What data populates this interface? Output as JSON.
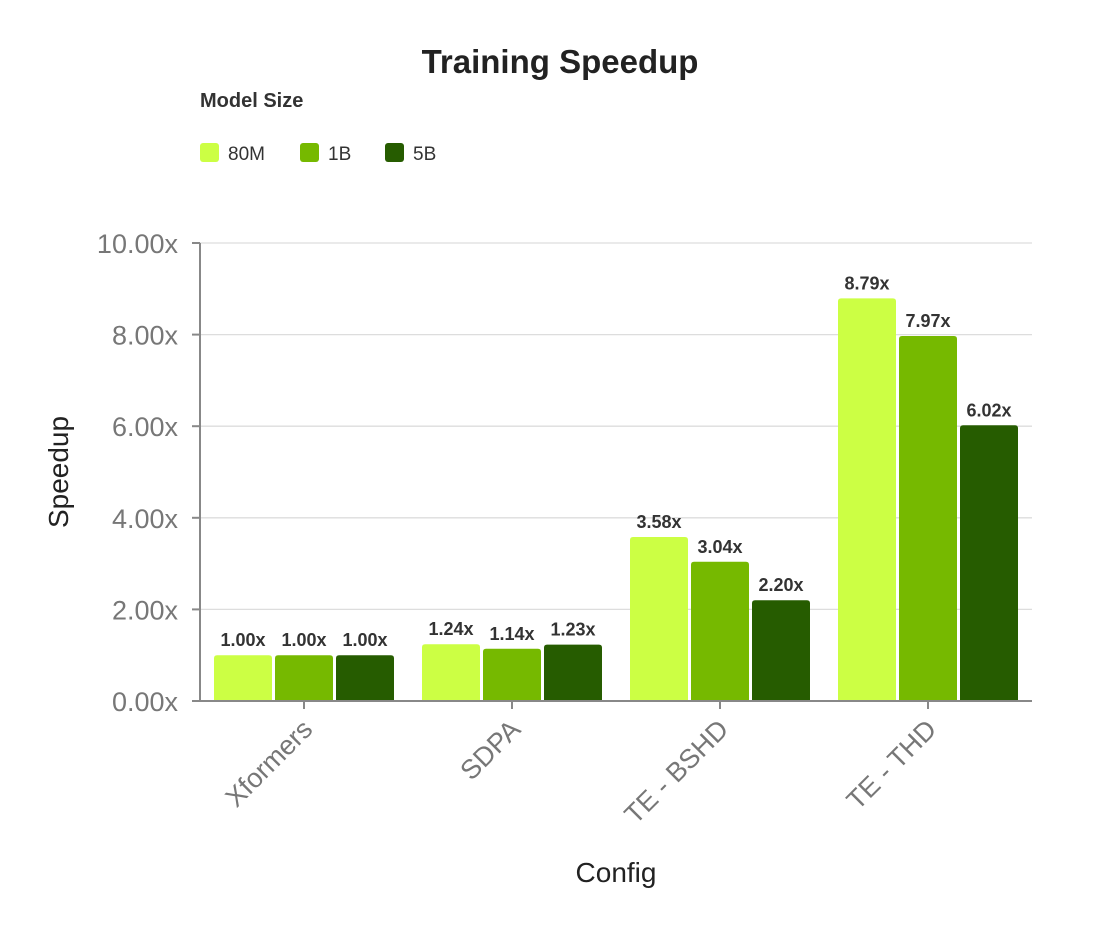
{
  "chart_data": {
    "type": "bar",
    "title": "Training Speedup",
    "legend_title": "Model Size",
    "legend_position": "top-left",
    "xlabel": "Config",
    "ylabel": "Speedup",
    "categories": [
      "Xformers",
      "SDPA",
      "TE - BSHD",
      "TE - THD"
    ],
    "series": [
      {
        "name": "80M",
        "color": "#ccff44",
        "values": [
          1.0,
          1.24,
          3.58,
          8.79
        ],
        "labels": [
          "1.00x",
          "1.24x",
          "3.58x",
          "8.79x"
        ]
      },
      {
        "name": "1B",
        "color": "#76b900",
        "values": [
          1.0,
          1.14,
          3.04,
          7.97
        ],
        "labels": [
          "1.00x",
          "1.14x",
          "3.04x",
          "7.97x"
        ]
      },
      {
        "name": "5B",
        "color": "#265c00",
        "values": [
          1.0,
          1.23,
          2.2,
          6.02
        ],
        "labels": [
          "1.00x",
          "1.23x",
          "2.20x",
          "6.02x"
        ]
      }
    ],
    "ylim": [
      0,
      10
    ],
    "yticks": [
      0,
      2,
      4,
      6,
      8,
      10
    ],
    "ytick_labels": [
      "0.00x",
      "2.00x",
      "4.00x",
      "6.00x",
      "8.00x",
      "10.00x"
    ],
    "grid": true
  }
}
